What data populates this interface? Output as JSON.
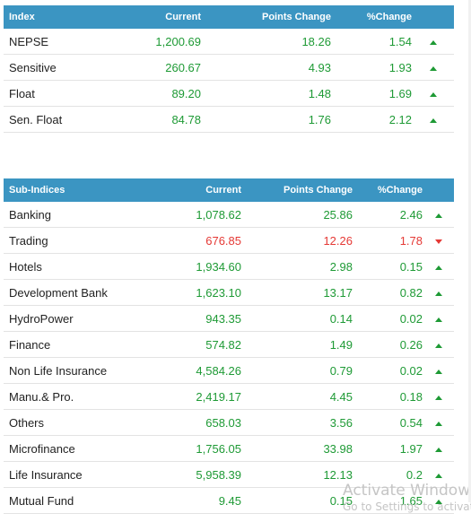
{
  "index_table": {
    "headers": [
      "Index",
      "Current",
      "Points Change",
      "%Change"
    ],
    "rows": [
      {
        "name": "NEPSE",
        "current": "1,200.69",
        "points": "18.26",
        "pct": "1.54",
        "dir": "up"
      },
      {
        "name": "Sensitive",
        "current": "260.67",
        "points": "4.93",
        "pct": "1.93",
        "dir": "up"
      },
      {
        "name": "Float",
        "current": "89.20",
        "points": "1.48",
        "pct": "1.69",
        "dir": "up"
      },
      {
        "name": "Sen. Float",
        "current": "84.78",
        "points": "1.76",
        "pct": "2.12",
        "dir": "up"
      }
    ]
  },
  "sub_indices_table": {
    "headers": [
      "Sub-Indices",
      "Current",
      "Points Change",
      "%Change"
    ],
    "rows": [
      {
        "name": "Banking",
        "current": "1,078.62",
        "points": "25.86",
        "pct": "2.46",
        "dir": "up"
      },
      {
        "name": "Trading",
        "current": "676.85",
        "points": "12.26",
        "pct": "1.78",
        "dir": "down"
      },
      {
        "name": "Hotels",
        "current": "1,934.60",
        "points": "2.98",
        "pct": "0.15",
        "dir": "up"
      },
      {
        "name": "Development Bank",
        "current": "1,623.10",
        "points": "13.17",
        "pct": "0.82",
        "dir": "up"
      },
      {
        "name": "HydroPower",
        "current": "943.35",
        "points": "0.14",
        "pct": "0.02",
        "dir": "up"
      },
      {
        "name": "Finance",
        "current": "574.82",
        "points": "1.49",
        "pct": "0.26",
        "dir": "up"
      },
      {
        "name": "Non Life Insurance",
        "current": "4,584.26",
        "points": "0.79",
        "pct": "0.02",
        "dir": "up"
      },
      {
        "name": "Manu.& Pro.",
        "current": "2,419.17",
        "points": "4.45",
        "pct": "0.18",
        "dir": "up"
      },
      {
        "name": "Others",
        "current": "658.03",
        "points": "3.56",
        "pct": "0.54",
        "dir": "up"
      },
      {
        "name": "Microfinance",
        "current": "1,756.05",
        "points": "33.98",
        "pct": "1.97",
        "dir": "up"
      },
      {
        "name": "Life Insurance",
        "current": "5,958.39",
        "points": "12.13",
        "pct": "0.2",
        "dir": "up"
      },
      {
        "name": "Mutual Fund",
        "current": "9.45",
        "points": "0.15",
        "pct": "1.65",
        "dir": "up"
      }
    ]
  },
  "watermark": {
    "title": "Activate Windows",
    "subtitle": "Go to Settings to activate Windows."
  },
  "colors": {
    "header_bg": "#3b95c2",
    "up": "#1e9a35",
    "down": "#e53935"
  }
}
